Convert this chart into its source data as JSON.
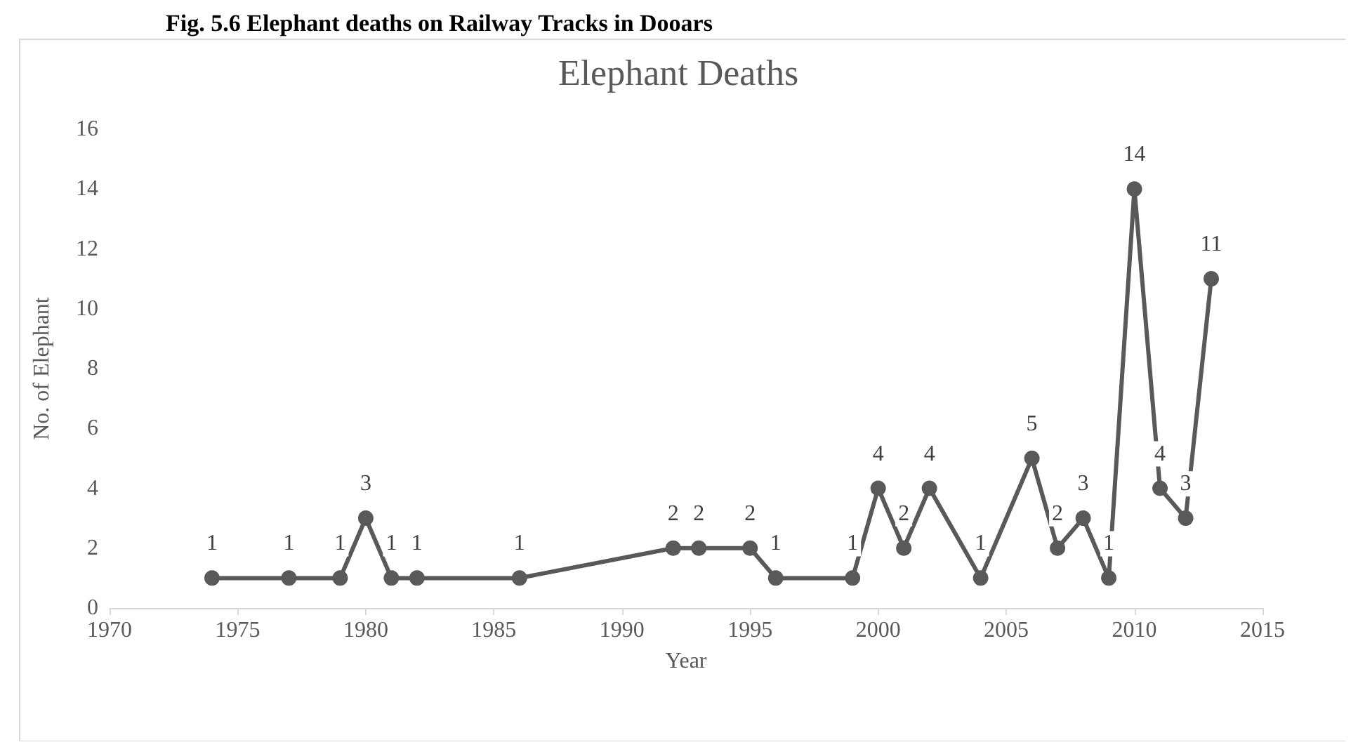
{
  "chart_data": {
    "type": "line",
    "title": "Elephant Deaths",
    "xlabel": "Year",
    "ylabel": "No. of Elephant",
    "annotations": [
      "Fig. 5.6 Elephant deaths on Railway Tracks in Dooars"
    ],
    "x": [
      1974,
      1977,
      1979,
      1980,
      1981,
      1982,
      1986,
      1992,
      1993,
      1995,
      1996,
      1999,
      2000,
      2001,
      2002,
      2004,
      2006,
      2007,
      2008,
      2009,
      2010,
      2011,
      2012,
      2013
    ],
    "series": [
      {
        "color": "#595959",
        "values": [
          1,
          1,
          1,
          3,
          1,
          1,
          1,
          2,
          2,
          2,
          1,
          1,
          4,
          2,
          4,
          1,
          5,
          2,
          3,
          1,
          14,
          4,
          3,
          11
        ]
      }
    ],
    "xlim": [
      1970,
      2015
    ],
    "xticks": [
      1970,
      1975,
      1980,
      1985,
      1990,
      1995,
      2000,
      2005,
      2010,
      2015
    ],
    "ylim": [
      0,
      16
    ],
    "yticks": [
      0,
      2,
      4,
      6,
      8,
      10,
      12,
      14,
      16
    ],
    "data_labels": true,
    "grid": false,
    "marker": "circle",
    "line_style": "solid"
  }
}
